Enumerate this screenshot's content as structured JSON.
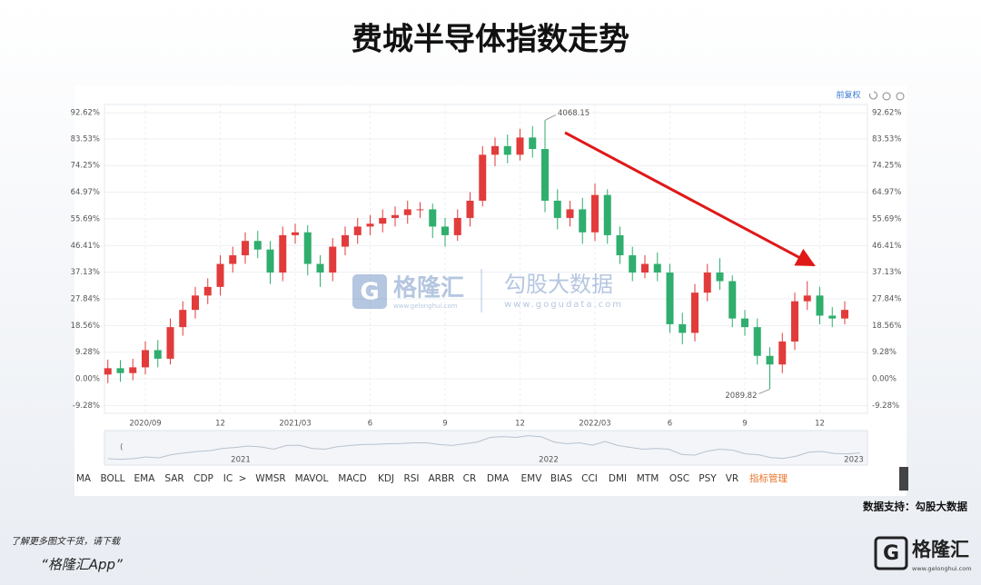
{
  "chart_data": {
    "type": "candlestick",
    "title": "费城半导体指数走势",
    "categories": [
      null,
      null,
      null,
      "2020/09",
      null,
      null,
      null,
      null,
      null,
      "12",
      null,
      null,
      null,
      null,
      null,
      "2021/03",
      null,
      null,
      null,
      null,
      null,
      "6",
      null,
      null,
      null,
      null,
      null,
      "9",
      null,
      null,
      null,
      null,
      null,
      "12",
      null,
      null,
      null,
      null,
      null,
      "2022/03",
      null,
      null,
      null,
      null,
      null,
      "6",
      null,
      null,
      null,
      null,
      null,
      "9",
      null,
      null,
      null,
      null,
      null,
      "12",
      null,
      null
    ],
    "open": [
      1.5,
      3.7,
      2,
      4,
      10,
      7,
      18,
      24,
      29,
      32,
      40,
      43,
      48,
      45,
      37,
      50,
      51,
      40,
      37,
      46,
      50,
      53,
      54,
      56,
      57,
      59,
      59,
      53,
      50,
      56,
      62,
      78,
      81,
      78,
      84,
      80,
      62,
      56,
      59,
      51,
      64,
      50,
      43,
      37,
      40,
      37,
      19,
      16,
      30,
      37,
      34,
      21,
      18,
      8,
      5,
      13,
      27,
      29,
      22,
      21
    ],
    "high": [
      6.7,
      6.5,
      7,
      13,
      13.5,
      21,
      27,
      32,
      35,
      43,
      46,
      51,
      51.5,
      48,
      53,
      54,
      53.5,
      43,
      49,
      53,
      56,
      57,
      59,
      60,
      62,
      61.5,
      61,
      56,
      59,
      65,
      81,
      84,
      85,
      87,
      88,
      90,
      66,
      62,
      63,
      68,
      66,
      53,
      46,
      43,
      44,
      40,
      23,
      33,
      40,
      42,
      36,
      24,
      21,
      11,
      16,
      30,
      34,
      32,
      25,
      27
    ],
    "low": [
      -1.5,
      -1,
      -0.5,
      1.5,
      4,
      5,
      15,
      21,
      26,
      29,
      37,
      40,
      42,
      33,
      34,
      47,
      36,
      32,
      34,
      43,
      47,
      50,
      51,
      53,
      54,
      56,
      49,
      46,
      48,
      53,
      60,
      74,
      75,
      76,
      77,
      58,
      52,
      53,
      47,
      48,
      47,
      40,
      34,
      35,
      34,
      16,
      12,
      13,
      27,
      31,
      18,
      15,
      5,
      -3.6,
      2,
      10,
      24,
      19,
      18,
      19
    ],
    "close": [
      3.7,
      2,
      4,
      10,
      7,
      18,
      24,
      29,
      32,
      40,
      43,
      48,
      45,
      37,
      50,
      51,
      40,
      37,
      46,
      50,
      53,
      54,
      56,
      57,
      59,
      59,
      53,
      50,
      56,
      62,
      78,
      81,
      78,
      84,
      80,
      62,
      56,
      59,
      51,
      64,
      50,
      43,
      37,
      40,
      37,
      19,
      16,
      30,
      37,
      34,
      21,
      18,
      8,
      5,
      13,
      27,
      29,
      22,
      21,
      24
    ],
    "up_color": "#e23b3b",
    "down_color": "#2fae6e",
    "ylim": [
      -12,
      95.5
    ],
    "yticks": [
      {
        "value": 92.62,
        "label": "92.62%"
      },
      {
        "value": 83.53,
        "label": "83.53%"
      },
      {
        "value": 74.25,
        "label": "74.25%"
      },
      {
        "value": 64.97,
        "label": "64.97%"
      },
      {
        "value": 55.69,
        "label": "55.69%"
      },
      {
        "value": 46.41,
        "label": "46.41%"
      },
      {
        "value": 37.13,
        "label": "37.13%"
      },
      {
        "value": 27.84,
        "label": "27.84%"
      },
      {
        "value": 18.56,
        "label": "18.56%"
      },
      {
        "value": 9.28,
        "label": "9.28%"
      },
      {
        "value": 0,
        "label": "0.00%"
      },
      {
        "value": -9.28,
        "label": "-9.28%"
      }
    ],
    "grid": true,
    "annotations": [
      "4068.15",
      "2089.82"
    ],
    "adjust_mode": "前复权",
    "navigator_years": [
      "2021",
      "2022",
      "2023"
    ]
  },
  "watermark": {
    "brand": "格隆汇",
    "brand_url": "www.gelonghui.com",
    "data_brand": "勾股大数据",
    "data_url": "www.gogudata.com"
  },
  "indicator_tabs": [
    "MA",
    "BOLL",
    "EMA",
    "SAR",
    "CDP",
    "IC",
    ">",
    "WMSR",
    "MAVOL",
    "MACD",
    "KDJ",
    "RSI",
    "ARBR",
    "CR",
    "DMA",
    "EMV",
    "BIAS",
    "CCI",
    "DMI",
    "MTM",
    "OSC",
    "PSY",
    "VR",
    "指标管理"
  ],
  "source": "数据支持：勾股大数据",
  "footer": {
    "promo": "了解更多图文干货，请下载",
    "app": "“格隆汇App”",
    "logo": "格隆汇",
    "url": "www.gelonghui.com"
  }
}
